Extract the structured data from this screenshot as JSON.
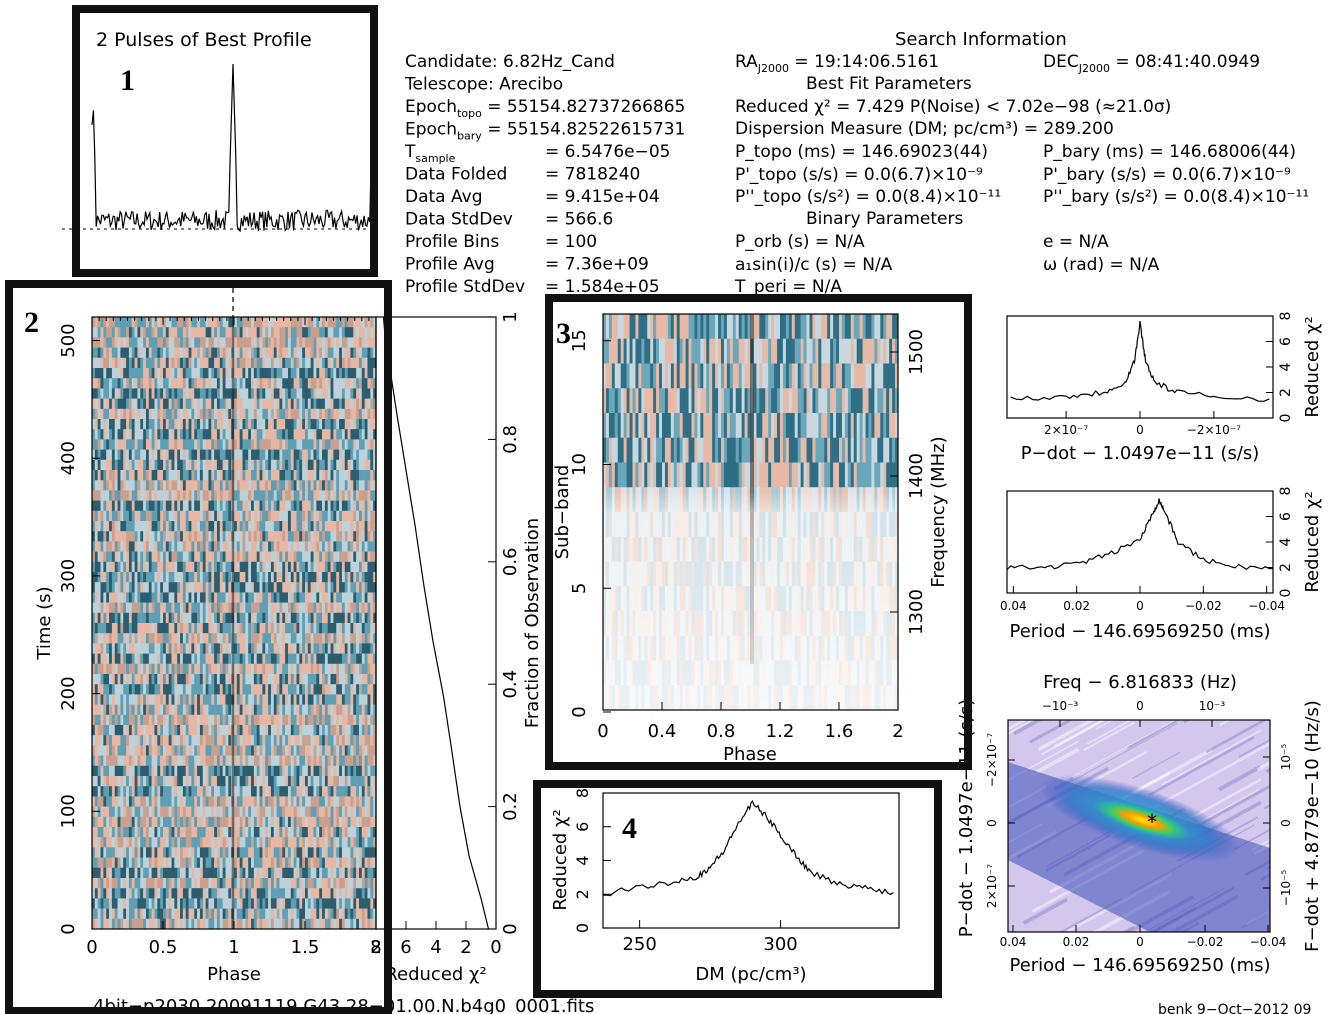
{
  "colors": {
    "frame": "#111111",
    "heat_hi": "#ffcc00",
    "heat_mid": "#22c080",
    "heat_low": "#3c4fb8",
    "bg_light": "#c9c0e8"
  },
  "boxes": {
    "box1": "1",
    "box2": "2",
    "box3": "3",
    "box4": "4"
  },
  "profile": {
    "title": "2 Pulses of Best Profile"
  },
  "info_left": [
    {
      "k": "Candidate:  6.82Hz_Cand",
      "v": ""
    },
    {
      "k": "Telescope:  Arecibo",
      "v": ""
    },
    {
      "k": "Epoch",
      "sub": "topo",
      "v": " = 55154.82737266865"
    },
    {
      "k": "Epoch",
      "sub": "bary",
      "v": " = 55154.82522615731"
    },
    {
      "k": "T",
      "sub": "sample",
      "v": "=   6.5476e−05"
    },
    {
      "k": "Data Folded",
      "v": "=   7818240"
    },
    {
      "k": "Data Avg",
      "v": "=   9.415e+04"
    },
    {
      "k": "Data StdDev",
      "v": "=   566.6"
    },
    {
      "k": "Profile Bins",
      "v": "=   100"
    },
    {
      "k": "Profile Avg",
      "v": "=   7.36e+09"
    },
    {
      "k": "Profile StdDev",
      "v": "=   1.584e+05"
    }
  ],
  "search": {
    "header": "Search Information",
    "ra_label": "RA",
    "ra_sub": "J2000",
    "ra_val": " = 19:14:06.5161",
    "dec_label": "DEC",
    "dec_sub": "J2000",
    "dec_val": " = 08:41:40.0949",
    "best_fit_header": "Best Fit Parameters",
    "chi2_line": "Reduced χ² = 7.429    P(Noise) < 7.02e−98    (≈21.0σ)",
    "dm_line": "Dispersion Measure (DM; pc/cm³) = 289.200",
    "ptopo": "P_topo (ms)  =   146.69023(44)",
    "pbary": "P_bary (ms)  =   146.68006(44)",
    "pdtopo": "P'_topo (s/s) = 0.0(6.7)×10⁻⁹",
    "pdbary": "P'_bary (s/s) = 0.0(6.7)×10⁻⁹",
    "pddtopo": "P''_topo (s/s²) = 0.0(8.4)×10⁻¹¹",
    "pddbary": "P''_bary (s/s²) = 0.0(8.4)×10⁻¹¹",
    "binary_header": "Binary Parameters",
    "porb": "P_orb (s) = N/A",
    "e": "e = N/A",
    "a1": "a₁sin(i)/c (s) = N/A",
    "omega": "ω (rad) = N/A",
    "tperi": "T_peri = N/A"
  },
  "footer": {
    "filename": "4bit−p2030.20091119.G43.28−01.00.N.b4g0_0001.fits",
    "stamp": "benk  9−Oct−2012 09"
  },
  "chart_data": [
    {
      "type": "line",
      "id": "profile",
      "title": "2 Pulses of Best Profile",
      "x": [
        0,
        0.1,
        0.2,
        0.3,
        0.4,
        0.5,
        0.6,
        0.7,
        0.8,
        0.9,
        0.95,
        1.0,
        1.05,
        1.1,
        1.2,
        1.3,
        1.4,
        1.5,
        1.6,
        1.7,
        1.8,
        1.9,
        1.95,
        2.0
      ],
      "y": [
        1.0,
        0.12,
        0.1,
        0.11,
        0.09,
        0.12,
        0.1,
        0.11,
        0.09,
        0.12,
        0.18,
        1.0,
        0.16,
        0.1,
        0.12,
        0.09,
        0.11,
        0.1,
        0.12,
        0.1,
        0.09,
        0.12,
        0.1,
        0.13
      ],
      "xlim": [
        0,
        2
      ]
    },
    {
      "type": "heatmap",
      "id": "time_phase",
      "xlabel": "Phase",
      "ylabel": "Time (s)",
      "x_ticks": [
        "0",
        "0.5",
        "1",
        "1.5",
        "2"
      ],
      "y_ticks": [
        "0",
        "100",
        "200",
        "300",
        "400",
        "500"
      ],
      "xlim": [
        0,
        2
      ],
      "ylim": [
        0,
        520
      ]
    },
    {
      "type": "line",
      "id": "time_chi2",
      "xlabel": "Reduced χ²",
      "x_ticks": [
        "8",
        "6",
        "4",
        "2",
        "0"
      ],
      "y2label": "Fraction of Observation",
      "y2_ticks": [
        "0",
        "0.2",
        "0.4",
        "0.6",
        "0.8",
        "1"
      ],
      "x": [
        0.5,
        1.0,
        1.8,
        2.4,
        3.0,
        3.5,
        4.2,
        4.8,
        5.4,
        6.0,
        6.6,
        7.1,
        7.4,
        7.5
      ],
      "y": [
        0.0,
        0.05,
        0.12,
        0.2,
        0.3,
        0.38,
        0.47,
        0.56,
        0.66,
        0.75,
        0.84,
        0.92,
        0.97,
        1.0
      ]
    },
    {
      "type": "heatmap",
      "id": "subband_phase",
      "xlabel": "Phase",
      "ylabel": "Sub−band",
      "y2label": "Frequency (MHz)",
      "x_ticks": [
        "0",
        "0.4",
        "0.8",
        "1.2",
        "1.6",
        "2"
      ],
      "y_ticks": [
        "0",
        "5",
        "10",
        "15"
      ],
      "y2_ticks": [
        "1300",
        "1400",
        "1500"
      ],
      "xlim": [
        0,
        2
      ],
      "ylim": [
        0,
        16
      ]
    },
    {
      "type": "line",
      "id": "dm_chi2",
      "xlabel": "DM (pc/cm³)",
      "ylabel": "Reduced χ²",
      "x_ticks": [
        "250",
        "300"
      ],
      "y_ticks": [
        "0",
        "2",
        "4",
        "6",
        "8"
      ],
      "x": [
        237,
        250,
        260,
        270,
        275,
        280,
        285,
        290,
        295,
        300,
        305,
        310,
        320,
        330,
        340
      ],
      "y": [
        2.0,
        2.4,
        2.7,
        3.0,
        3.6,
        4.6,
        6.2,
        7.4,
        6.6,
        5.5,
        4.4,
        3.4,
        2.6,
        2.4,
        2.1
      ],
      "xlim": [
        237,
        342
      ],
      "ylim": [
        0,
        8
      ]
    },
    {
      "type": "line",
      "id": "pdot_chi2",
      "xlabel": "P−dot − 1.0497e−11 (s/s)",
      "y2label": "Reduced χ²",
      "x_ticks": [
        "2×10⁻⁷",
        "0",
        "−2×10⁻⁷"
      ],
      "y_ticks": [
        "0",
        "2",
        "4",
        "6",
        "8"
      ],
      "x": [
        3.5e-07,
        2e-07,
        1e-07,
        4e-08,
        1.5e-08,
        0,
        -1.5e-08,
        -4e-08,
        -1e-07,
        -2e-07,
        -3.5e-07
      ],
      "y": [
        1.5,
        1.7,
        2.0,
        2.8,
        4.5,
        7.4,
        4.5,
        2.8,
        2.0,
        1.7,
        1.5
      ],
      "ylim": [
        0,
        8
      ]
    },
    {
      "type": "line",
      "id": "period_chi2",
      "xlabel": "Period − 146.69569250 (ms)",
      "y2label": "Reduced χ²",
      "x_ticks": [
        "0.04",
        "0.02",
        "0",
        "−0.02",
        "−0.04"
      ],
      "y_ticks": [
        "0",
        "2",
        "4",
        "6",
        "8"
      ],
      "x": [
        0.042,
        0.03,
        0.02,
        0.01,
        0.0,
        -0.004,
        -0.006,
        -0.008,
        -0.012,
        -0.02,
        -0.03,
        -0.042
      ],
      "y": [
        2.0,
        2.0,
        2.3,
        3.0,
        4.2,
        6.2,
        7.3,
        6.3,
        4.0,
        2.6,
        2.1,
        1.9
      ],
      "ylim": [
        0,
        8
      ]
    },
    {
      "type": "heatmap",
      "id": "period_pdot",
      "title": "Freq − 6.816833 (Hz)",
      "xlabel": "Period − 146.69569250 (ms)",
      "ylabel": "P−dot − 1.0497e−11 (s/s)",
      "y2label": "F−dot + 4.8779e−10 (Hz/s)",
      "x_ticks": [
        "0.04",
        "0.02",
        "0",
        "−0.02",
        "−0.04"
      ],
      "top_ticks": [
        "−10⁻³",
        "0",
        "10⁻³"
      ],
      "y_ticks": [
        "−2×10⁻⁷",
        "0",
        "2×10⁻⁷"
      ],
      "y2_ticks": [
        "10⁻⁵",
        "0",
        "−10⁻⁵"
      ]
    }
  ]
}
